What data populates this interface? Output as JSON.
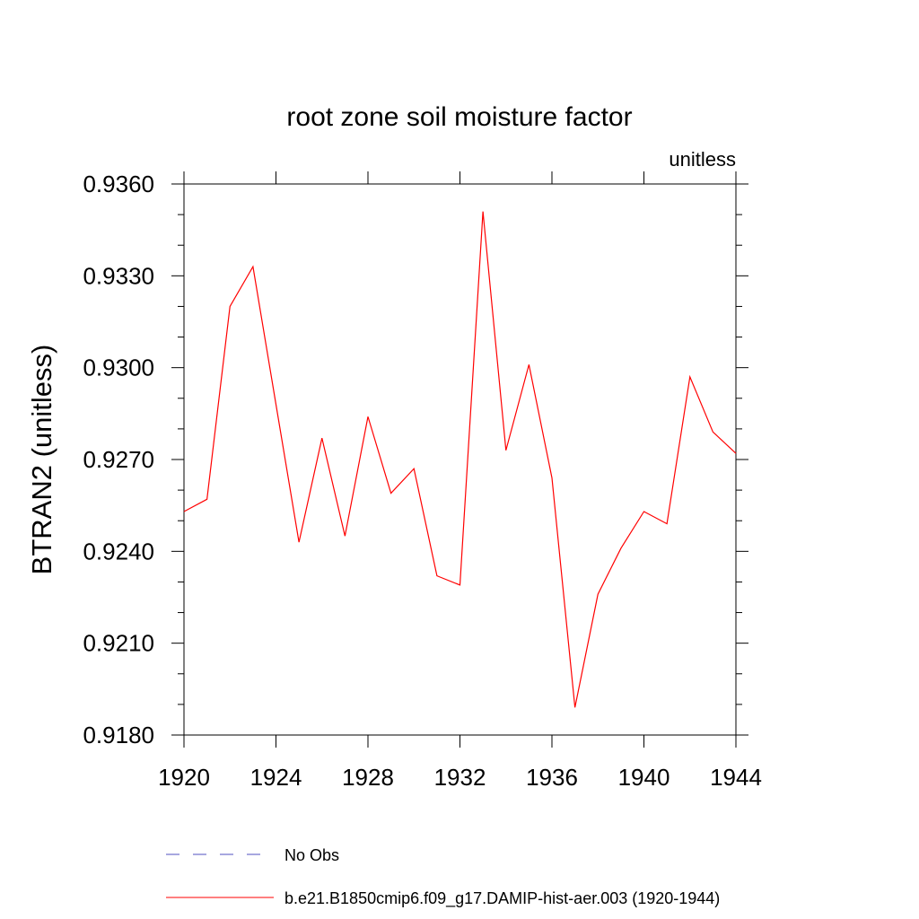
{
  "chart_data": {
    "type": "line",
    "title": "root zone soil moisture factor",
    "units_label": "unitless",
    "ylabel": "BTRAN2  (unitless)",
    "xlabel": "",
    "xlim": [
      1920,
      1944
    ],
    "ylim": [
      0.918,
      0.936
    ],
    "x_ticks": [
      1920,
      1924,
      1928,
      1932,
      1936,
      1940,
      1944
    ],
    "x_tick_labels": [
      "1920",
      "1924",
      "1928",
      "1932",
      "1936",
      "1940",
      "1944"
    ],
    "y_ticks": [
      0.918,
      0.921,
      0.924,
      0.927,
      0.93,
      0.933,
      0.936
    ],
    "y_tick_labels": [
      "0.9180",
      "0.9210",
      "0.9240",
      "0.9270",
      "0.9300",
      "0.9330",
      "0.9360"
    ],
    "grid": false,
    "series": [
      {
        "name": "b.e21.B1850cmip6.f09_g17.DAMIP-hist-aer.003 (1920-1944)",
        "color": "#ff0000",
        "style": "solid",
        "x": [
          1920,
          1921,
          1922,
          1923,
          1924,
          1925,
          1926,
          1927,
          1928,
          1929,
          1930,
          1931,
          1932,
          1933,
          1934,
          1935,
          1936,
          1937,
          1938,
          1939,
          1940,
          1941,
          1942,
          1943,
          1944
        ],
        "y": [
          0.9253,
          0.9257,
          0.932,
          0.9333,
          0.9288,
          0.9243,
          0.9277,
          0.9245,
          0.9284,
          0.9259,
          0.9267,
          0.9232,
          0.9229,
          0.9351,
          0.9273,
          0.9301,
          0.9264,
          0.9189,
          0.9226,
          0.9241,
          0.9253,
          0.9249,
          0.9297,
          0.9279,
          0.9272
        ]
      }
    ],
    "legend": {
      "position": "bottom",
      "entries": [
        {
          "label": "No Obs",
          "color": "#5050c0",
          "style": "dashed"
        },
        {
          "label": "b.e21.B1850cmip6.f09_g17.DAMIP-hist-aer.003 (1920-1944)",
          "color": "#ff0000",
          "style": "solid"
        }
      ]
    }
  }
}
